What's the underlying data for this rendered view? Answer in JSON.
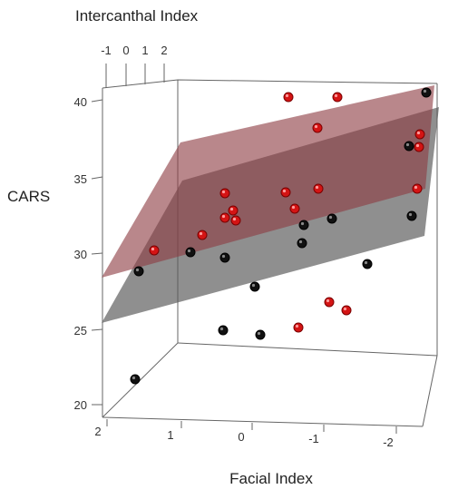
{
  "chart_data": {
    "type": "scatter",
    "subtype": "3d-scatter-with-regression-planes",
    "axes": {
      "x": {
        "label": "Facial Index",
        "ticks": [
          "2",
          "1",
          "0",
          "-1",
          "-2"
        ]
      },
      "y": {
        "label": "CARS",
        "ticks": [
          "20",
          "25",
          "30",
          "35",
          "40"
        ]
      },
      "z": {
        "label": "Intercanthal Index",
        "ticks": [
          "-1",
          "0",
          "1",
          "2"
        ]
      }
    },
    "point_colors": {
      "black": "#111111",
      "red": "#d41414"
    },
    "plane_colors": {
      "upper": "#8e3d44",
      "lower": "#5a5a5a"
    },
    "points_screen": [
      {
        "color": "black",
        "u": 149,
        "v": 418
      },
      {
        "color": "black",
        "u": 246,
        "v": 364
      },
      {
        "color": "black",
        "u": 287,
        "v": 369
      },
      {
        "color": "red",
        "u": 329,
        "v": 361
      },
      {
        "color": "red",
        "u": 363,
        "v": 333
      },
      {
        "color": "red",
        "u": 382,
        "v": 342
      },
      {
        "color": "black",
        "u": 281,
        "v": 316
      },
      {
        "color": "black",
        "u": 405,
        "v": 291
      },
      {
        "color": "black",
        "u": 153,
        "v": 299
      },
      {
        "color": "black",
        "u": 248,
        "v": 284
      },
      {
        "color": "black",
        "u": 333,
        "v": 268
      },
      {
        "color": "black",
        "u": 210,
        "v": 278
      },
      {
        "color": "red",
        "u": 170,
        "v": 276
      },
      {
        "color": "red",
        "u": 223,
        "v": 259
      },
      {
        "color": "black",
        "u": 366,
        "v": 241
      },
      {
        "color": "black",
        "u": 335,
        "v": 248
      },
      {
        "color": "black",
        "u": 454,
        "v": 238
      },
      {
        "color": "red",
        "u": 248,
        "v": 240
      },
      {
        "color": "red",
        "u": 260,
        "v": 243
      },
      {
        "color": "red",
        "u": 257,
        "v": 232
      },
      {
        "color": "red",
        "u": 325,
        "v": 230
      },
      {
        "color": "red",
        "u": 248,
        "v": 213
      },
      {
        "color": "red",
        "u": 315,
        "v": 212
      },
      {
        "color": "red",
        "u": 351,
        "v": 208
      },
      {
        "color": "red",
        "u": 460,
        "v": 208
      },
      {
        "color": "black",
        "u": 451,
        "v": 161
      },
      {
        "color": "red",
        "u": 462,
        "v": 162
      },
      {
        "color": "red",
        "u": 463,
        "v": 148
      },
      {
        "color": "red",
        "u": 350,
        "v": 141
      },
      {
        "color": "red",
        "u": 318,
        "v": 107
      },
      {
        "color": "red",
        "u": 372,
        "v": 107
      },
      {
        "color": "black",
        "u": 470,
        "v": 102
      }
    ]
  }
}
